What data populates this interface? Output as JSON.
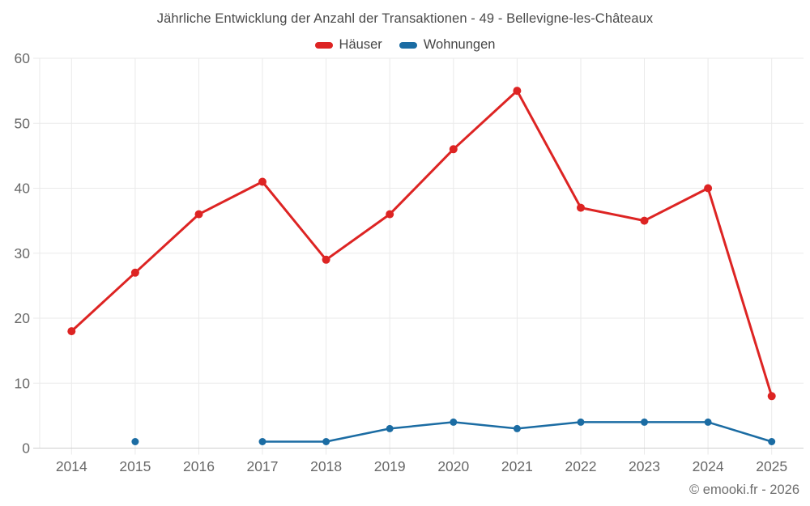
{
  "chart_data": {
    "type": "line",
    "title": "Jährliche Entwicklung der Anzahl der Transaktionen - 49 - Bellevigne-les-Châteaux",
    "categories": [
      "2014",
      "2015",
      "2016",
      "2017",
      "2018",
      "2019",
      "2020",
      "2021",
      "2022",
      "2023",
      "2024",
      "2025"
    ],
    "series": [
      {
        "name": "Häuser",
        "color": "#dd2423",
        "values": [
          18,
          27,
          36,
          41,
          29,
          36,
          46,
          55,
          37,
          35,
          40,
          8
        ]
      },
      {
        "name": "Wohnungen",
        "color": "#1b6ca3",
        "values": [
          null,
          1,
          null,
          1,
          1,
          3,
          4,
          3,
          4,
          4,
          4,
          1
        ]
      }
    ],
    "xlabel": "",
    "ylabel": "",
    "ylim": [
      0,
      60
    ],
    "yticks": [
      0,
      10,
      20,
      30,
      40,
      50,
      60
    ],
    "grid": true,
    "legend_position": "top-center"
  },
  "footer": {
    "copyright": "© emooki.fr - 2026"
  },
  "theme": {
    "background": "#ffffff",
    "grid_color": "#eaeaea",
    "axis_line_color": "#cfcfcf",
    "tick_label_color": "#686868",
    "title_color": "#4a4a4a",
    "legend_text_color": "#464646",
    "copyright_color": "#6e6e6e"
  }
}
